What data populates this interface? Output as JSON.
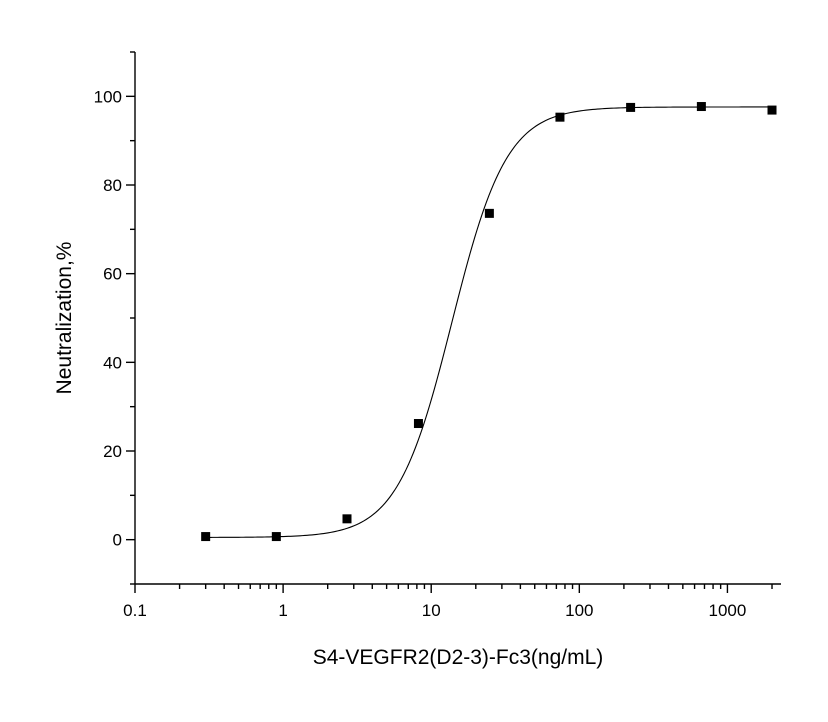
{
  "chart_data": {
    "type": "scatter",
    "title": "",
    "xlabel": "S4-VEGFR2(D2-3)-Fc3(ng/mL)",
    "ylabel": "Neutralization,%",
    "x_scale": "log",
    "xlim": [
      0.1,
      2300
    ],
    "ylim": [
      -10,
      110
    ],
    "x_ticks": [
      0.1,
      1,
      10,
      100,
      1000
    ],
    "x_tick_labels": [
      "0.1",
      "1",
      "10",
      "100",
      "1000"
    ],
    "y_ticks": [
      0,
      20,
      40,
      60,
      80,
      100
    ],
    "y_tick_labels": [
      "0",
      "20",
      "40",
      "60",
      "80",
      "100"
    ],
    "grid": false,
    "series": [
      {
        "x": [
          0.3,
          0.9,
          2.7,
          8.2,
          24.7,
          74,
          222,
          667,
          2000
        ],
        "y": [
          0.7,
          0.7,
          4.7,
          26.2,
          73.6,
          95.3,
          97.5,
          97.7,
          96.9
        ],
        "marker": "square",
        "fit": "sigmoidal",
        "color": "#000000"
      }
    ]
  }
}
